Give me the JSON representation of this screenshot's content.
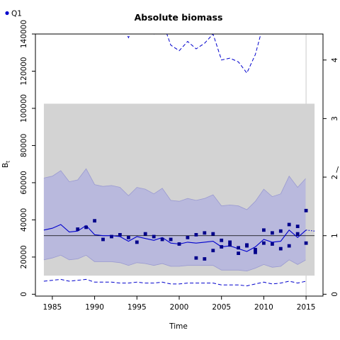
{
  "chart_data": {
    "type": "line",
    "title": "Absolute biomass",
    "xlabel": "Time",
    "ylabel": "B",
    "ylabel_subscript": "t",
    "legend": {
      "placement": "top-left",
      "entries": [
        {
          "label": "Q1",
          "marker": "dot",
          "color": "#0000cd"
        }
      ]
    },
    "xlim": [
      1983,
      2017
    ],
    "ylim": [
      -1000,
      140000
    ],
    "x_ticks": [
      1985,
      1990,
      1995,
      2000,
      2005,
      2010,
      2015
    ],
    "y_ticks": [
      0,
      20000,
      40000,
      60000,
      80000,
      100000,
      120000,
      140000
    ],
    "y2_ticks": [
      0,
      1,
      2,
      3,
      4
    ],
    "y2_scale": 31500,
    "grey_band": {
      "x": [
        1984,
        2016
      ],
      "y": [
        10000,
        102500
      ],
      "color": "#d3d3d3"
    },
    "reference_line": {
      "y": 31500,
      "color": "#000000"
    },
    "current_year_line": {
      "x": 2015,
      "color": "#d3d3d3"
    },
    "years": [
      1984,
      1985,
      1986,
      1987,
      1988,
      1989,
      1990,
      1991,
      1992,
      1993,
      1994,
      1995,
      1996,
      1997,
      1998,
      1999,
      2000,
      2001,
      2002,
      2003,
      2004,
      2005,
      2006,
      2007,
      2008,
      2009,
      2010,
      2011,
      2012,
      2013,
      2014,
      2015
    ],
    "series": [
      {
        "name": "Estimate",
        "color": "#0000cd",
        "values": [
          34500,
          35500,
          37500,
          33500,
          34000,
          37000,
          32000,
          31500,
          31500,
          31000,
          28500,
          31000,
          30000,
          29000,
          30500,
          27500,
          27000,
          28000,
          27500,
          28000,
          28500,
          25500,
          26000,
          24500,
          23000,
          25500,
          29500,
          28000,
          28500,
          34500,
          30500,
          34500
        ]
      },
      {
        "name": "Lower CI",
        "color": "#0000cd",
        "values": [
          18500,
          19500,
          21000,
          18500,
          19000,
          21000,
          17500,
          17500,
          17500,
          17000,
          15500,
          17000,
          16500,
          15500,
          16500,
          15000,
          15000,
          15500,
          15500,
          15500,
          15500,
          13000,
          13000,
          13000,
          12500,
          14000,
          16000,
          14500,
          15000,
          18500,
          16000,
          18500
        ]
      },
      {
        "name": "Upper CI",
        "color": "#0000cd",
        "values": [
          62500,
          63500,
          66500,
          60500,
          61500,
          67500,
          59000,
          58000,
          58500,
          57500,
          53000,
          57500,
          56500,
          54000,
          57000,
          50500,
          50000,
          51500,
          50500,
          51500,
          53500,
          47500,
          48000,
          47500,
          45500,
          50000,
          56500,
          52500,
          54000,
          63500,
          57500,
          62500
        ]
      },
      {
        "name": "Upper dashed",
        "color": "#0000cd",
        "style": "dashed",
        "values": [
          160000,
          161000,
          168000,
          156000,
          159000,
          172000,
          150000,
          149000,
          149000,
          148000,
          138000,
          148000,
          146000,
          140000,
          147000,
          134000,
          131000,
          136000,
          132000,
          135000,
          140000,
          126000,
          127000,
          125000,
          119000,
          129000,
          146000,
          140000,
          141000,
          163000,
          149000,
          163000
        ]
      },
      {
        "name": "Lower dashed",
        "color": "#0000cd",
        "style": "dashed",
        "values": [
          7000,
          7500,
          8000,
          7000,
          7500,
          8000,
          6500,
          6500,
          6500,
          6000,
          6000,
          6500,
          6000,
          6000,
          6500,
          5500,
          5500,
          6000,
          6000,
          6000,
          6000,
          5000,
          5000,
          5000,
          4500,
          5500,
          6500,
          5500,
          6000,
          7000,
          6000,
          7000
        ]
      }
    ],
    "prediction": {
      "x": [
        2015,
        2016
      ],
      "values": [
        34500,
        34000
      ],
      "color": "#0000cd",
      "style": "dotted"
    },
    "observations": {
      "name": "Q1",
      "color": "#00008b",
      "x": [
        1988,
        1989,
        1990,
        1991,
        1992,
        1993,
        1994,
        1995,
        1996,
        1997,
        1998,
        1999,
        2000,
        2001,
        2002,
        2002,
        2003,
        2003,
        2004,
        2004,
        2005,
        2005,
        2006,
        2006,
        2007,
        2007,
        2008,
        2008,
        2009,
        2009,
        2010,
        2010,
        2011,
        2011,
        2012,
        2012,
        2013,
        2013,
        2014,
        2014,
        2015,
        2015
      ],
      "y": [
        35000,
        36000,
        39500,
        29500,
        31000,
        32000,
        30500,
        28000,
        32500,
        31000,
        29500,
        29500,
        27000,
        30500,
        32000,
        19500,
        33000,
        19000,
        32500,
        23500,
        29000,
        25500,
        28000,
        26500,
        25000,
        22000,
        26500,
        26000,
        24000,
        22500,
        34500,
        27500,
        33000,
        27000,
        34000,
        24500,
        37500,
        26000,
        36500,
        32500,
        45000,
        27500
      ]
    }
  }
}
